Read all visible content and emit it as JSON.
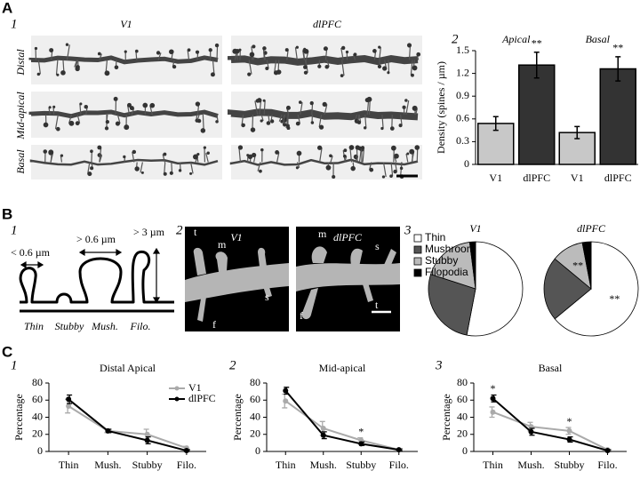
{
  "figure": {
    "panel_letters": [
      "A",
      "B",
      "C"
    ],
    "A": {
      "sub": [
        "1",
        "2"
      ],
      "columns": [
        "V1",
        "dlPFC"
      ],
      "rows": [
        "Distal",
        "Mid-apical",
        "Basal"
      ]
    },
    "B": {
      "sub": [
        "1",
        "2",
        "3"
      ],
      "diagram": {
        "dims": [
          "< 0.6 µm",
          "> 0.6 µm",
          "> 3 µm"
        ],
        "types": [
          "Thin",
          "Stubby",
          "Mush.",
          "Filo."
        ]
      },
      "micrographs": {
        "titles": [
          "V1",
          "dlPFC"
        ],
        "v1_marks": [
          "t",
          "m",
          "s",
          "f"
        ],
        "dlpfc_marks": [
          "m",
          "s",
          "f",
          "t"
        ]
      }
    },
    "C": {
      "sub": [
        "1",
        "2",
        "3"
      ]
    }
  },
  "chart_data": [
    {
      "type": "bar",
      "y_label": "Density (spines / µm)",
      "categories": [
        "Apical",
        "Basal"
      ],
      "ylim": [
        0,
        1.5
      ],
      "yticks": [
        0,
        0.3,
        0.6,
        0.9,
        1.2,
        1.5
      ],
      "series": [
        {
          "name": "V1",
          "color": "#c8c8c8",
          "values": [
            0.54,
            0.42
          ],
          "errors": [
            0.09,
            0.08
          ]
        },
        {
          "name": "dlPFC",
          "color": "#333333",
          "values": [
            1.31,
            1.26
          ],
          "errors": [
            0.17,
            0.16
          ],
          "annotations": [
            "**",
            "**"
          ]
        }
      ]
    },
    {
      "type": "pie",
      "title": "V1",
      "labels": [
        "Thin",
        "Mushroom",
        "Stubby",
        "Filopodia"
      ],
      "values": [
        53,
        27,
        18,
        2
      ],
      "colors": [
        "#ffffff",
        "#555555",
        "#bbbbbb",
        "#000000"
      ]
    },
    {
      "type": "pie",
      "title": "dlPFC",
      "labels": [
        "Thin",
        "Mushroom",
        "Stubby",
        "Filopodia"
      ],
      "values": [
        64,
        22,
        11,
        3
      ],
      "colors": [
        "#ffffff",
        "#555555",
        "#bbbbbb",
        "#000000"
      ],
      "annotations": [
        {
          "category": "Thin",
          "text": "**"
        },
        {
          "category": "Stubby",
          "text": "**"
        }
      ]
    },
    {
      "type": "line",
      "title": "Distal Apical",
      "y_label": "Percentage",
      "categories": [
        "Thin",
        "Mush.",
        "Stubby",
        "Filo."
      ],
      "ylim": [
        0,
        80
      ],
      "yticks": [
        0,
        20,
        40,
        60,
        80
      ],
      "legend": "top-right",
      "series": [
        {
          "name": "V1",
          "color": "#aaaaaa",
          "values": [
            53,
            24,
            20,
            4
          ],
          "errors": [
            8,
            2,
            6,
            2
          ]
        },
        {
          "name": "dlPFC",
          "color": "#000000",
          "values": [
            61,
            24,
            13,
            1
          ],
          "errors": [
            5,
            2,
            4,
            1
          ]
        }
      ]
    },
    {
      "type": "line",
      "title": "Mid-apical",
      "y_label": "Percentage",
      "categories": [
        "Thin",
        "Mush.",
        "Stubby",
        "Filo."
      ],
      "ylim": [
        0,
        80
      ],
      "yticks": [
        0,
        20,
        40,
        60,
        80
      ],
      "annotations": [
        {
          "category": "Stubby",
          "text": "*"
        }
      ],
      "series": [
        {
          "name": "V1",
          "color": "#aaaaaa",
          "values": [
            59,
            27,
            13,
            2
          ],
          "errors": [
            8,
            8,
            3,
            1
          ]
        },
        {
          "name": "dlPFC",
          "color": "#000000",
          "values": [
            71,
            19,
            9,
            2
          ],
          "errors": [
            4,
            4,
            2,
            1
          ]
        }
      ]
    },
    {
      "type": "line",
      "title": "Basal",
      "y_label": "Percentage",
      "categories": [
        "Thin",
        "Mush.",
        "Stubby",
        "Filo."
      ],
      "ylim": [
        0,
        80
      ],
      "yticks": [
        0,
        20,
        40,
        60,
        80
      ],
      "annotations": [
        {
          "category": "Thin",
          "text": "*"
        },
        {
          "category": "Stubby",
          "text": "*"
        }
      ],
      "series": [
        {
          "name": "V1",
          "color": "#aaaaaa",
          "values": [
            46,
            29,
            24,
            2
          ],
          "errors": [
            6,
            5,
            4,
            1
          ]
        },
        {
          "name": "dlPFC",
          "color": "#000000",
          "values": [
            62,
            23,
            14,
            1
          ],
          "errors": [
            4,
            4,
            3,
            1
          ]
        }
      ]
    }
  ]
}
